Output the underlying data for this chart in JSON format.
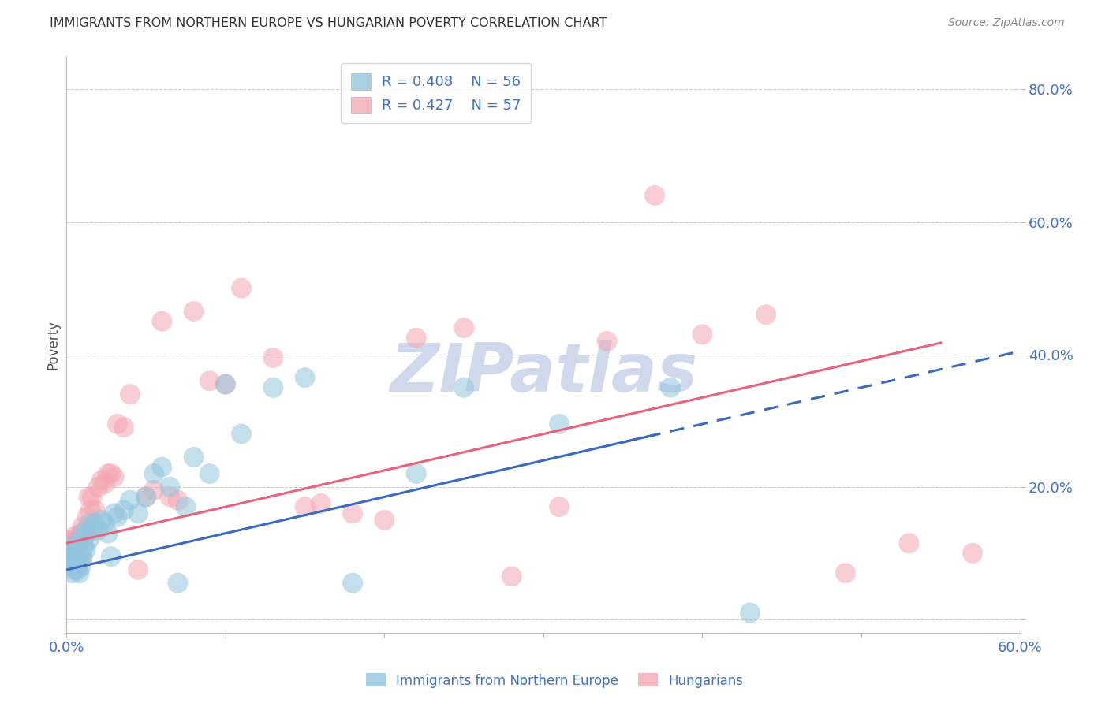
{
  "title": "IMMIGRANTS FROM NORTHERN EUROPE VS HUNGARIAN POVERTY CORRELATION CHART",
  "source": "Source: ZipAtlas.com",
  "ylabel": "Poverty",
  "xlim": [
    0.0,
    0.6
  ],
  "ylim": [
    -0.02,
    0.85
  ],
  "yticks": [
    0.0,
    0.2,
    0.4,
    0.6,
    0.8
  ],
  "ytick_labels": [
    "",
    "20.0%",
    "40.0%",
    "60.0%",
    "80.0%"
  ],
  "xticks": [
    0.0,
    0.1,
    0.2,
    0.3,
    0.4,
    0.5,
    0.6
  ],
  "xtick_labels": [
    "0.0%",
    "",
    "",
    "",
    "",
    "",
    "60.0%"
  ],
  "blue_R": 0.408,
  "blue_N": 56,
  "pink_R": 0.427,
  "pink_N": 57,
  "blue_color": "#92c5de",
  "pink_color": "#f4a6b2",
  "blue_line_color": "#3a6bbf",
  "pink_line_color": "#e8637a",
  "axis_label_color": "#4472c4",
  "title_color": "#333333",
  "source_color": "#888888",
  "watermark_color": "#d0d8ec",
  "background_color": "#ffffff",
  "grid_color": "#cccccc",
  "blue_intercept": 0.075,
  "blue_slope": 0.55,
  "pink_intercept": 0.115,
  "pink_slope": 0.55,
  "blue_x": [
    0.001,
    0.002,
    0.002,
    0.003,
    0.003,
    0.003,
    0.004,
    0.004,
    0.004,
    0.005,
    0.005,
    0.006,
    0.006,
    0.007,
    0.007,
    0.008,
    0.008,
    0.009,
    0.009,
    0.01,
    0.01,
    0.011,
    0.012,
    0.013,
    0.014,
    0.015,
    0.016,
    0.018,
    0.02,
    0.022,
    0.024,
    0.026,
    0.028,
    0.03,
    0.032,
    0.036,
    0.04,
    0.045,
    0.05,
    0.055,
    0.06,
    0.065,
    0.07,
    0.075,
    0.08,
    0.09,
    0.1,
    0.11,
    0.13,
    0.15,
    0.18,
    0.22,
    0.25,
    0.31,
    0.38,
    0.43
  ],
  "blue_y": [
    0.095,
    0.09,
    0.105,
    0.08,
    0.095,
    0.11,
    0.07,
    0.09,
    0.1,
    0.075,
    0.105,
    0.085,
    0.095,
    0.075,
    0.095,
    0.095,
    0.07,
    0.12,
    0.08,
    0.13,
    0.095,
    0.11,
    0.105,
    0.13,
    0.12,
    0.145,
    0.135,
    0.145,
    0.135,
    0.15,
    0.145,
    0.13,
    0.095,
    0.16,
    0.155,
    0.165,
    0.18,
    0.16,
    0.185,
    0.22,
    0.23,
    0.2,
    0.055,
    0.17,
    0.245,
    0.22,
    0.355,
    0.28,
    0.35,
    0.365,
    0.055,
    0.22,
    0.35,
    0.295,
    0.35,
    0.01
  ],
  "pink_x": [
    0.001,
    0.002,
    0.003,
    0.003,
    0.004,
    0.004,
    0.005,
    0.005,
    0.006,
    0.007,
    0.008,
    0.008,
    0.009,
    0.01,
    0.01,
    0.011,
    0.012,
    0.013,
    0.014,
    0.015,
    0.016,
    0.018,
    0.02,
    0.022,
    0.024,
    0.026,
    0.028,
    0.03,
    0.032,
    0.036,
    0.04,
    0.045,
    0.05,
    0.055,
    0.06,
    0.065,
    0.07,
    0.08,
    0.09,
    0.1,
    0.11,
    0.13,
    0.15,
    0.16,
    0.18,
    0.2,
    0.22,
    0.25,
    0.28,
    0.31,
    0.34,
    0.37,
    0.4,
    0.44,
    0.49,
    0.53,
    0.57
  ],
  "pink_y": [
    0.12,
    0.095,
    0.095,
    0.115,
    0.09,
    0.12,
    0.105,
    0.125,
    0.095,
    0.11,
    0.085,
    0.115,
    0.13,
    0.14,
    0.09,
    0.125,
    0.135,
    0.155,
    0.185,
    0.165,
    0.185,
    0.165,
    0.2,
    0.21,
    0.205,
    0.22,
    0.22,
    0.215,
    0.295,
    0.29,
    0.34,
    0.075,
    0.185,
    0.195,
    0.45,
    0.185,
    0.18,
    0.465,
    0.36,
    0.355,
    0.5,
    0.395,
    0.17,
    0.175,
    0.16,
    0.15,
    0.425,
    0.44,
    0.065,
    0.17,
    0.42,
    0.64,
    0.43,
    0.46,
    0.07,
    0.115,
    0.1
  ]
}
